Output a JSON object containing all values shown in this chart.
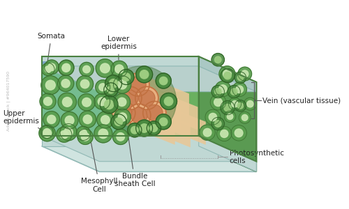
{
  "bg_color": "#ffffff",
  "leaf_body_color": "#7bc47a",
  "meso_outer": "#5a9e4e",
  "meso_inner": "#c8e6b0",
  "meso_border": "#3a6e30",
  "bs_outer": "#4a8a40",
  "bs_inner": "#9ccc80",
  "bs_dark": "#2e6025",
  "epidermis_color": "#c0d8d4",
  "epidermis_border": "#90b8b4",
  "epi_top_color": "#d0e4e0",
  "vein_fill": "#e8c898",
  "vein_tube_inner": "#cc8055",
  "vein_tube_outer": "#e8b080",
  "vein_tube_border": "#c07040",
  "cyan_bg": "#80c8c0",
  "right_face_bg": "#5a9a52",
  "right_face_edge": "#3a7030",
  "inner_green_bg": "#6ab060",
  "labels": {
    "mesophyll": "Mesophyll\nCell",
    "bundle_sheath": "Bundle\nsheath Cell",
    "photosynthetic": "Photosynthetic\ncells",
    "upper_epidermis": "Upper\nepidermis",
    "lower_epidermis": "Lower\nepidermis",
    "somata": "Somata",
    "vein": "Vein (vascular tissue)"
  },
  "watermark": "Adobe Stock | #964017590"
}
